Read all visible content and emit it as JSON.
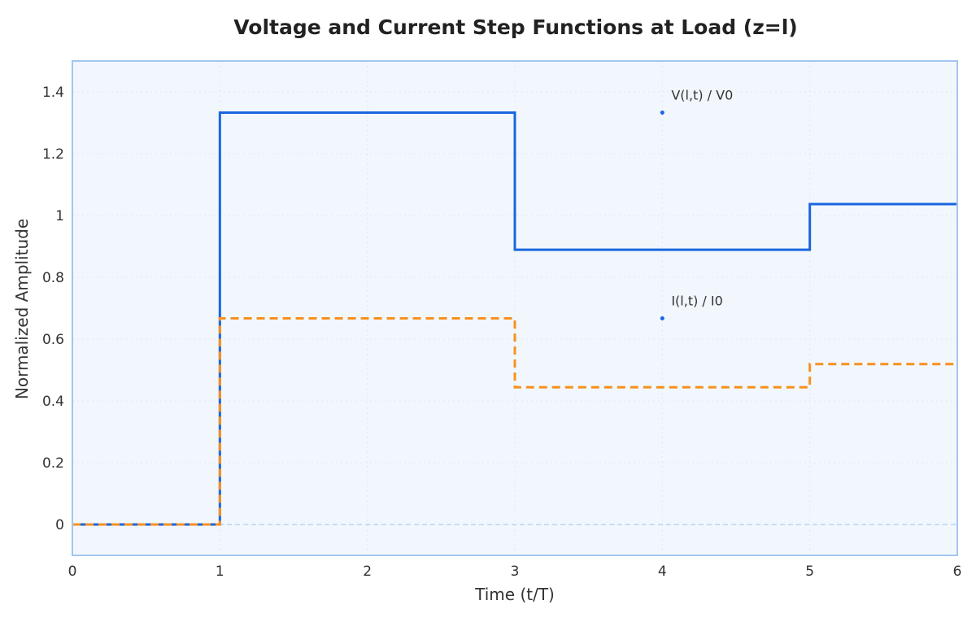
{
  "chart_data": {
    "type": "line",
    "title": "Voltage and Current Step Functions at Load (z=l)",
    "xlabel": "Time (t/T)",
    "ylabel": "Normalized Amplitude",
    "xlim": [
      0,
      6
    ],
    "ylim": [
      -0.1,
      1.5
    ],
    "xticks": [
      0,
      1,
      2,
      3,
      4,
      5,
      6
    ],
    "yticks": [
      0,
      0.2,
      0.4,
      0.6,
      0.8,
      1,
      1.2,
      1.4
    ],
    "grid": true,
    "series": [
      {
        "key": "voltage",
        "color": "#1a66e0",
        "style": "solid",
        "step_x": [
          0,
          1,
          1,
          3,
          3,
          5,
          5,
          6
        ],
        "step_y": [
          0,
          0,
          1.333,
          1.333,
          0.889,
          0.889,
          1.037,
          1.037
        ]
      },
      {
        "key": "current",
        "color": "#f7901e",
        "style": "dashed",
        "step_x": [
          0,
          1,
          1,
          3,
          3,
          5,
          5,
          6
        ],
        "step_y": [
          0,
          0,
          0.667,
          0.667,
          0.444,
          0.444,
          0.519,
          0.519
        ]
      }
    ],
    "annotations": [
      {
        "text": "V(l,t) / V0",
        "x": 4,
        "y": 1.333,
        "color": "#1a66e0"
      },
      {
        "text": "I(l,t) / I0",
        "x": 4,
        "y": 0.667,
        "color": "#1a66e0"
      }
    ],
    "zero_line": {
      "y": 0,
      "color": "#b8d3f5"
    },
    "colors": {
      "plot_background": "#f2f7fd",
      "plot_border": "#a3c5f2",
      "grid": "#dfe8f5"
    }
  }
}
